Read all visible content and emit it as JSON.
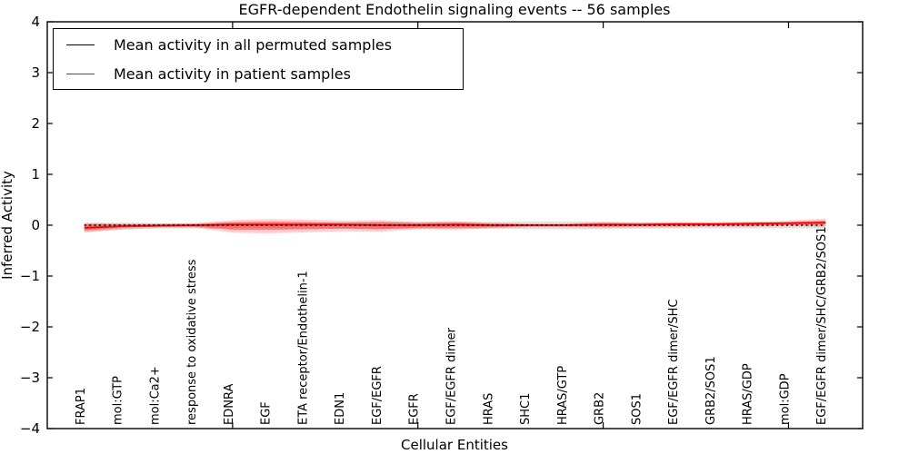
{
  "figure": {
    "background": "#ffffff",
    "axes_color": "#000000"
  },
  "chart_data": {
    "type": "line",
    "title": "EGFR-dependent Endothelin signaling events -- 56 samples",
    "xlabel": "Cellular Entities",
    "ylabel": "Inferred Activity",
    "ylim": [
      -4,
      4
    ],
    "xlim": [
      0,
      22
    ],
    "grid": false,
    "yticks": [
      {
        "value": 4,
        "label": "4"
      },
      {
        "value": 3,
        "label": "3"
      },
      {
        "value": 2,
        "label": "2"
      },
      {
        "value": 1,
        "label": "1"
      },
      {
        "value": 0,
        "label": "0"
      },
      {
        "value": -1,
        "label": "−1"
      },
      {
        "value": -2,
        "label": "−2"
      },
      {
        "value": -3,
        "label": "−3"
      },
      {
        "value": -4,
        "label": "−4"
      }
    ],
    "unlabeled_xtick_positions": [
      5,
      10,
      15,
      20
    ],
    "categories": [
      "FRAP1",
      "mol:GTP",
      "mol:Ca2+",
      "response to oxidative stress",
      "EDNRA",
      "EGF",
      "ETA receptor/Endothelin-1",
      "EDN1",
      "EGF/EGFR",
      "EGFR",
      "EGF/EGFR dimer",
      "HRAS",
      "SHC1",
      "HRAS/GTP",
      "GRB2",
      "SOS1",
      "EGF/EGFR dimer/SHC",
      "GRB2/SOS1",
      "HRAS/GDP",
      "mol:GDP",
      "EGF/EGFR dimer/SHC/GRB2/SOS1"
    ],
    "x": [
      1,
      2,
      3,
      4,
      5,
      6,
      7,
      8,
      9,
      10,
      11,
      12,
      13,
      14,
      15,
      16,
      17,
      18,
      19,
      20,
      21
    ],
    "series": [
      {
        "name": "Mean activity in all permuted samples",
        "color": "#000000",
        "style": "dashed",
        "values": [
          0,
          0,
          0,
          0,
          0,
          0,
          0,
          0,
          0,
          0,
          0,
          0,
          0,
          0,
          0,
          0,
          0,
          0,
          0,
          0,
          0
        ]
      },
      {
        "name": "Mean activity in patient samples",
        "color": "#ff0000",
        "style": "solid",
        "values": [
          -0.05,
          -0.02,
          -0.01,
          0,
          0.01,
          0.01,
          0.01,
          0.01,
          0,
          0,
          0.01,
          0,
          0,
          0,
          0.01,
          0.01,
          0.02,
          0.02,
          0.03,
          0.04,
          0.05
        ]
      }
    ],
    "bands": [
      {
        "name": "permuted-samples-std-band",
        "color": "#999999",
        "opacity": 0.3,
        "hi": [
          0.05,
          0.05,
          0.04,
          0.04,
          0.05,
          0.05,
          0.05,
          0.05,
          0.06,
          0.06,
          0.06,
          0.06,
          0.07,
          0.07,
          0.07,
          0.06,
          0.06,
          0.05,
          0.05,
          0.05,
          0.05
        ],
        "lo": [
          -0.13,
          -0.09,
          -0.07,
          -0.06,
          -0.06,
          -0.06,
          -0.06,
          -0.06,
          -0.07,
          -0.07,
          -0.07,
          -0.07,
          -0.08,
          -0.08,
          -0.08,
          -0.07,
          -0.06,
          -0.06,
          -0.06,
          -0.06,
          -0.06
        ]
      },
      {
        "name": "patient-samples-std-band-outer",
        "color": "#ff0000",
        "opacity": 0.18,
        "hi": [
          0.04,
          0.03,
          0.03,
          0.04,
          0.1,
          0.12,
          0.11,
          0.09,
          0.1,
          0.06,
          0.08,
          0.05,
          0.03,
          0.03,
          0.06,
          0.05,
          0.06,
          0.06,
          0.07,
          0.09,
          0.13
        ],
        "lo": [
          -0.15,
          -0.08,
          -0.05,
          -0.05,
          -0.15,
          -0.16,
          -0.14,
          -0.12,
          -0.13,
          -0.08,
          -0.09,
          -0.06,
          -0.04,
          -0.04,
          -0.05,
          -0.04,
          -0.04,
          -0.03,
          -0.03,
          -0.02,
          -0.03
        ]
      },
      {
        "name": "patient-samples-std-band-core",
        "color": "#ff0000",
        "opacity": 0.38,
        "hi": [
          0.02,
          0.02,
          0.02,
          0.02,
          0.06,
          0.07,
          0.06,
          0.05,
          0.06,
          0.04,
          0.05,
          0.03,
          0.02,
          0.02,
          0.04,
          0.03,
          0.04,
          0.04,
          0.05,
          0.06,
          0.09
        ],
        "lo": [
          -0.1,
          -0.05,
          -0.03,
          -0.03,
          -0.09,
          -0.09,
          -0.08,
          -0.07,
          -0.08,
          -0.05,
          -0.05,
          -0.04,
          -0.02,
          -0.02,
          -0.03,
          -0.02,
          -0.02,
          -0.01,
          -0.01,
          0.0,
          0.02
        ]
      }
    ],
    "legend": {
      "position": "upper-left",
      "entries": [
        {
          "label": "Mean activity in all permuted samples",
          "color": "#000000"
        },
        {
          "label": "Mean activity in patient samples",
          "color": "#ff0000"
        }
      ]
    }
  }
}
